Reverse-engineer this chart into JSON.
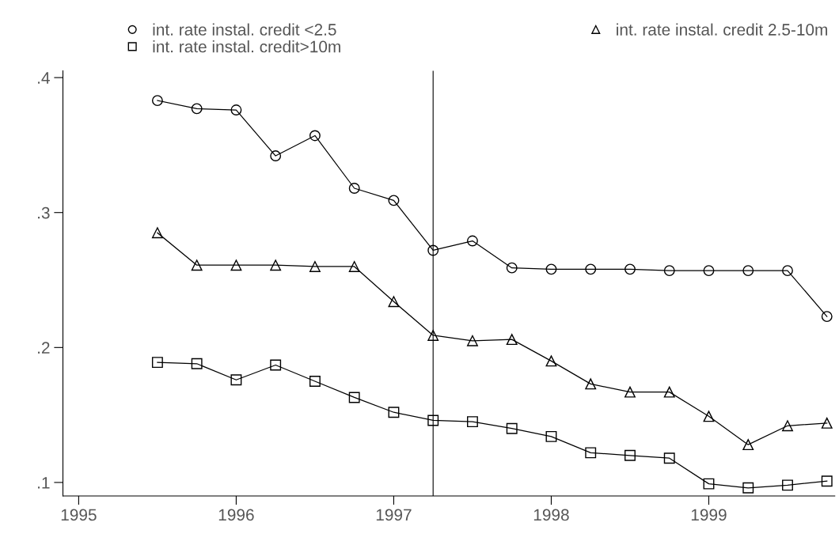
{
  "chart_data": {
    "type": "line",
    "x": [
      1995.5,
      1995.75,
      1996.0,
      1996.25,
      1996.5,
      1996.75,
      1997.0,
      1997.25,
      1997.5,
      1997.75,
      1998.0,
      1998.25,
      1998.5,
      1998.75,
      1999.0,
      1999.25,
      1999.5,
      1999.75
    ],
    "series": [
      {
        "name": "int. rate instal. credit <2.5",
        "color": "#000000",
        "marker": "circle",
        "values": [
          0.383,
          0.377,
          0.376,
          0.342,
          0.357,
          0.318,
          0.309,
          0.272,
          0.279,
          0.259,
          0.258,
          0.258,
          0.258,
          0.257,
          0.257,
          0.257,
          0.257,
          0.223
        ]
      },
      {
        "name": "int. rate instal. credit>10m",
        "color": "#000000",
        "marker": "square",
        "values": [
          0.189,
          0.188,
          0.176,
          0.187,
          0.175,
          0.163,
          0.152,
          0.146,
          0.145,
          0.14,
          0.134,
          0.122,
          0.12,
          0.118,
          0.099,
          0.096,
          0.098,
          0.101
        ]
      },
      {
        "name": "int. rate instal. credit 2.5-10m",
        "color": "#000000",
        "marker": "triangle",
        "values": [
          0.285,
          0.261,
          0.261,
          0.261,
          0.26,
          0.26,
          0.234,
          0.209,
          0.205,
          0.206,
          0.19,
          0.173,
          0.167,
          0.167,
          0.149,
          0.128,
          0.142,
          0.144
        ]
      }
    ],
    "xlim": [
      1994.9,
      1999.8
    ],
    "xticks": [
      1995,
      1996,
      1997,
      1998,
      1999
    ],
    "ylim": [
      0.09,
      0.405
    ],
    "yticks": [
      {
        "value": 0.1,
        "label": ".1"
      },
      {
        "value": 0.2,
        "label": ".2"
      },
      {
        "value": 0.3,
        "label": ".3"
      },
      {
        "value": 0.4,
        "label": ".4"
      }
    ],
    "ref_lines": [
      {
        "axis": "x",
        "value": 1997.25,
        "color": "#000000"
      }
    ],
    "legend": "top",
    "grid": false
  }
}
